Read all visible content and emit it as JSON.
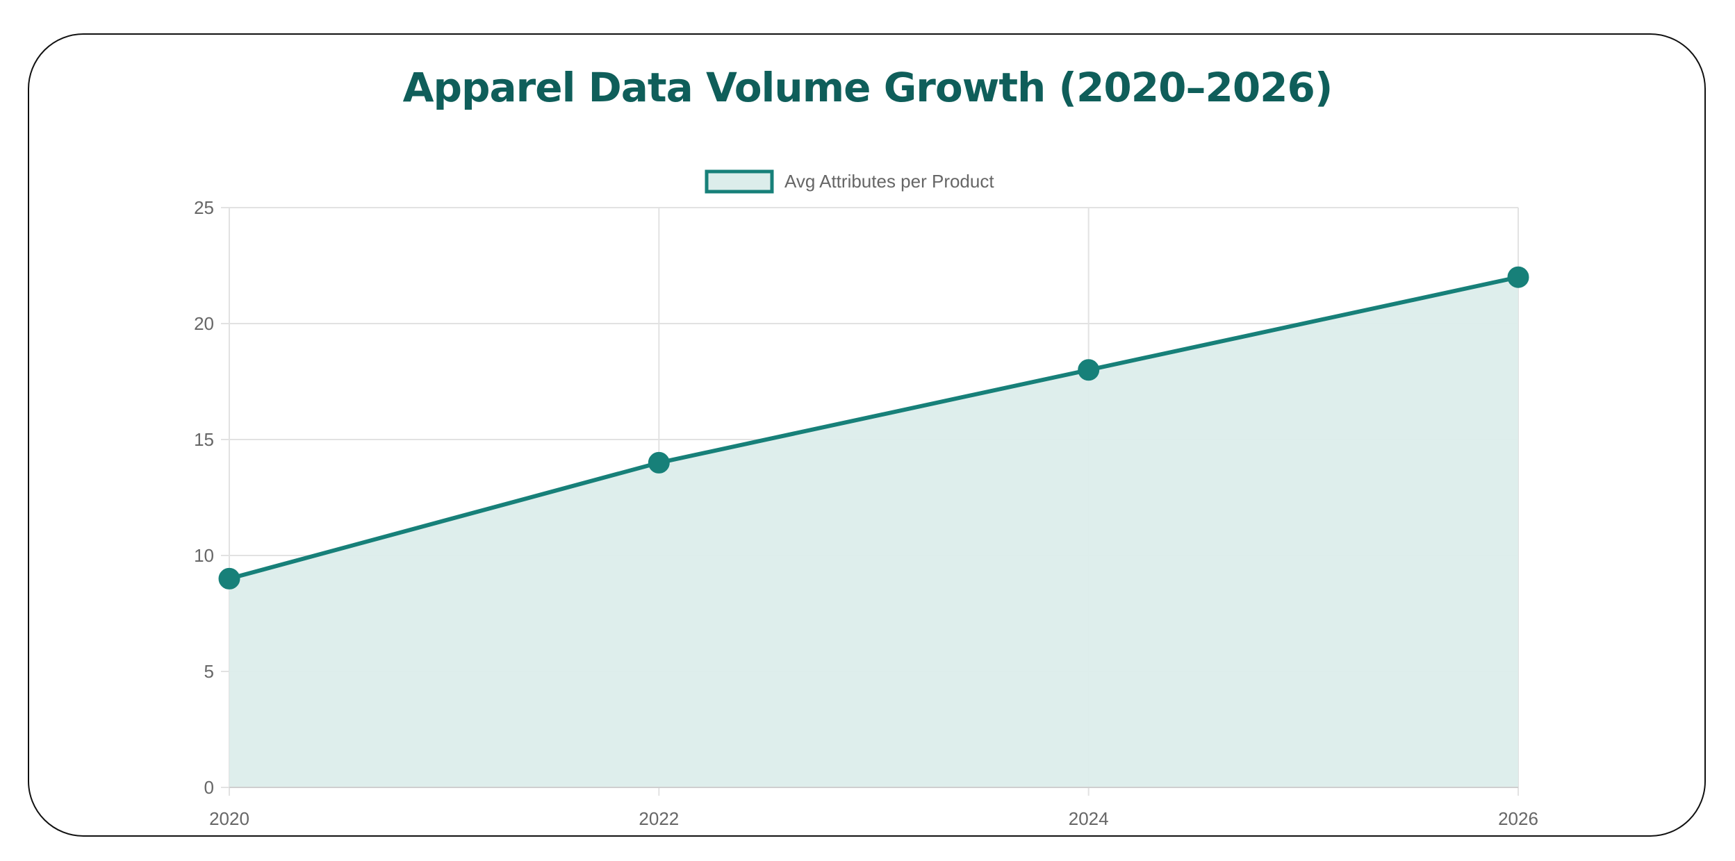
{
  "chart_data": {
    "type": "area",
    "title": "Apparel Data Volume Growth (2020–2026)",
    "xlabel": "",
    "ylabel": "",
    "categories": [
      "2020",
      "2022",
      "2024",
      "2026"
    ],
    "series": [
      {
        "name": "Avg Attributes per Product",
        "values": [
          9,
          14,
          18,
          22
        ]
      }
    ],
    "ylim": [
      0,
      25
    ],
    "yticks": [
      "0",
      "5",
      "10",
      "15",
      "20",
      "25"
    ],
    "grid": true,
    "legend": "top-center",
    "colors": {
      "line": "#178079",
      "fill": "#dcedeb",
      "title": "#0f5e5a"
    }
  }
}
